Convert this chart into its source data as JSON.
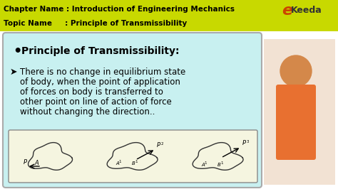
{
  "bg_color": "#ffffff",
  "header_bg": "#c8d900",
  "header_text_color": "#000000",
  "header_line1": "Chapter Name : Introduction of Engineering Mechanics",
  "header_line2": "Topic Name     : Principle of Transmissibility",
  "content_bg": "#c8f0f0",
  "content_title": "Principle of Transmissibility:",
  "content_body": [
    "There is no change in equilibrium state",
    "of body, when the point of application",
    "of forces on body is transferred to",
    "other point on line of action of force",
    "without changing the direction.."
  ],
  "logo_text": "Keeda",
  "logo_color": "#cc6600",
  "title_fontsize": 10,
  "body_fontsize": 8.5
}
